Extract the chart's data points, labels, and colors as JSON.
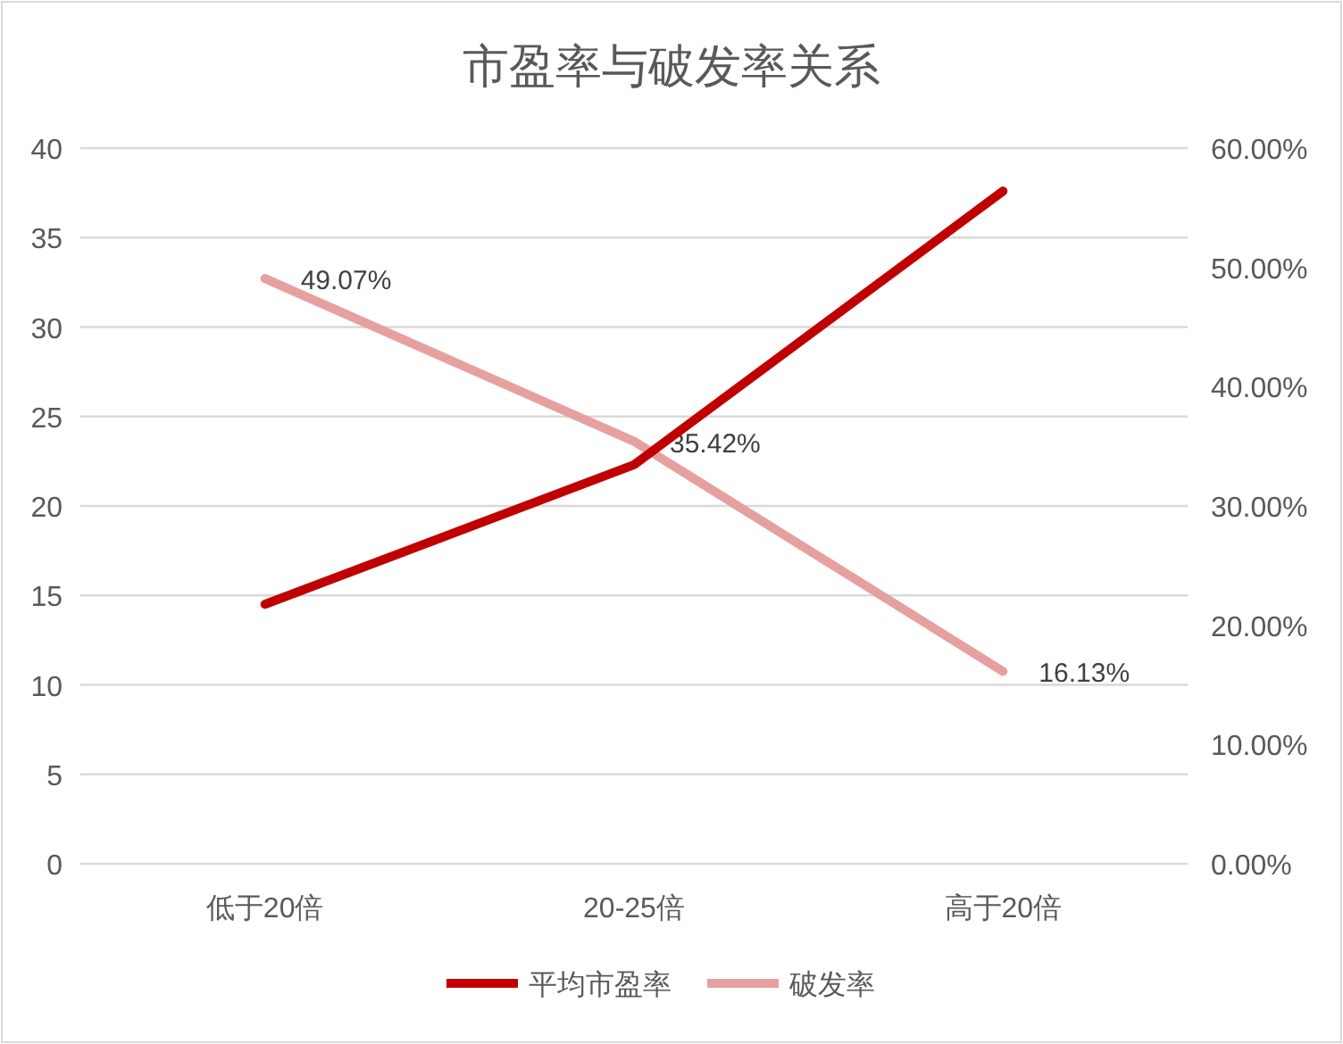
{
  "chart_data": {
    "type": "line",
    "title": "市盈率与破发率关系",
    "categories": [
      "低于20倍",
      "20-25倍",
      "高于20倍"
    ],
    "series": [
      {
        "name": "平均市盈率",
        "color": "#c00000",
        "values": [
          14.5,
          22.3,
          37.6
        ]
      },
      {
        "name": "破发率",
        "color": "#e6a0a0",
        "values": [
          49.07,
          35.42,
          16.13
        ],
        "axis": "y2",
        "value_labels": [
          "49.07%",
          "35.42%",
          "16.13%"
        ]
      }
    ],
    "ylim": [
      0,
      40
    ],
    "yticks": [
      0,
      5,
      10,
      15,
      20,
      25,
      30,
      35,
      40
    ],
    "y2lim": [
      0,
      60
    ],
    "y2ticks": [
      {
        "value": 0,
        "label": "0.00%"
      },
      {
        "value": 10,
        "label": "10.00%"
      },
      {
        "value": 20,
        "label": "20.00%"
      },
      {
        "value": 30,
        "label": "30.00%"
      },
      {
        "value": 40,
        "label": "40.00%"
      },
      {
        "value": 50,
        "label": "50.00%"
      },
      {
        "value": 60,
        "label": "60.00%"
      }
    ],
    "grid": "y",
    "legend": "bottom",
    "marker": "none",
    "line_style": "solid"
  }
}
